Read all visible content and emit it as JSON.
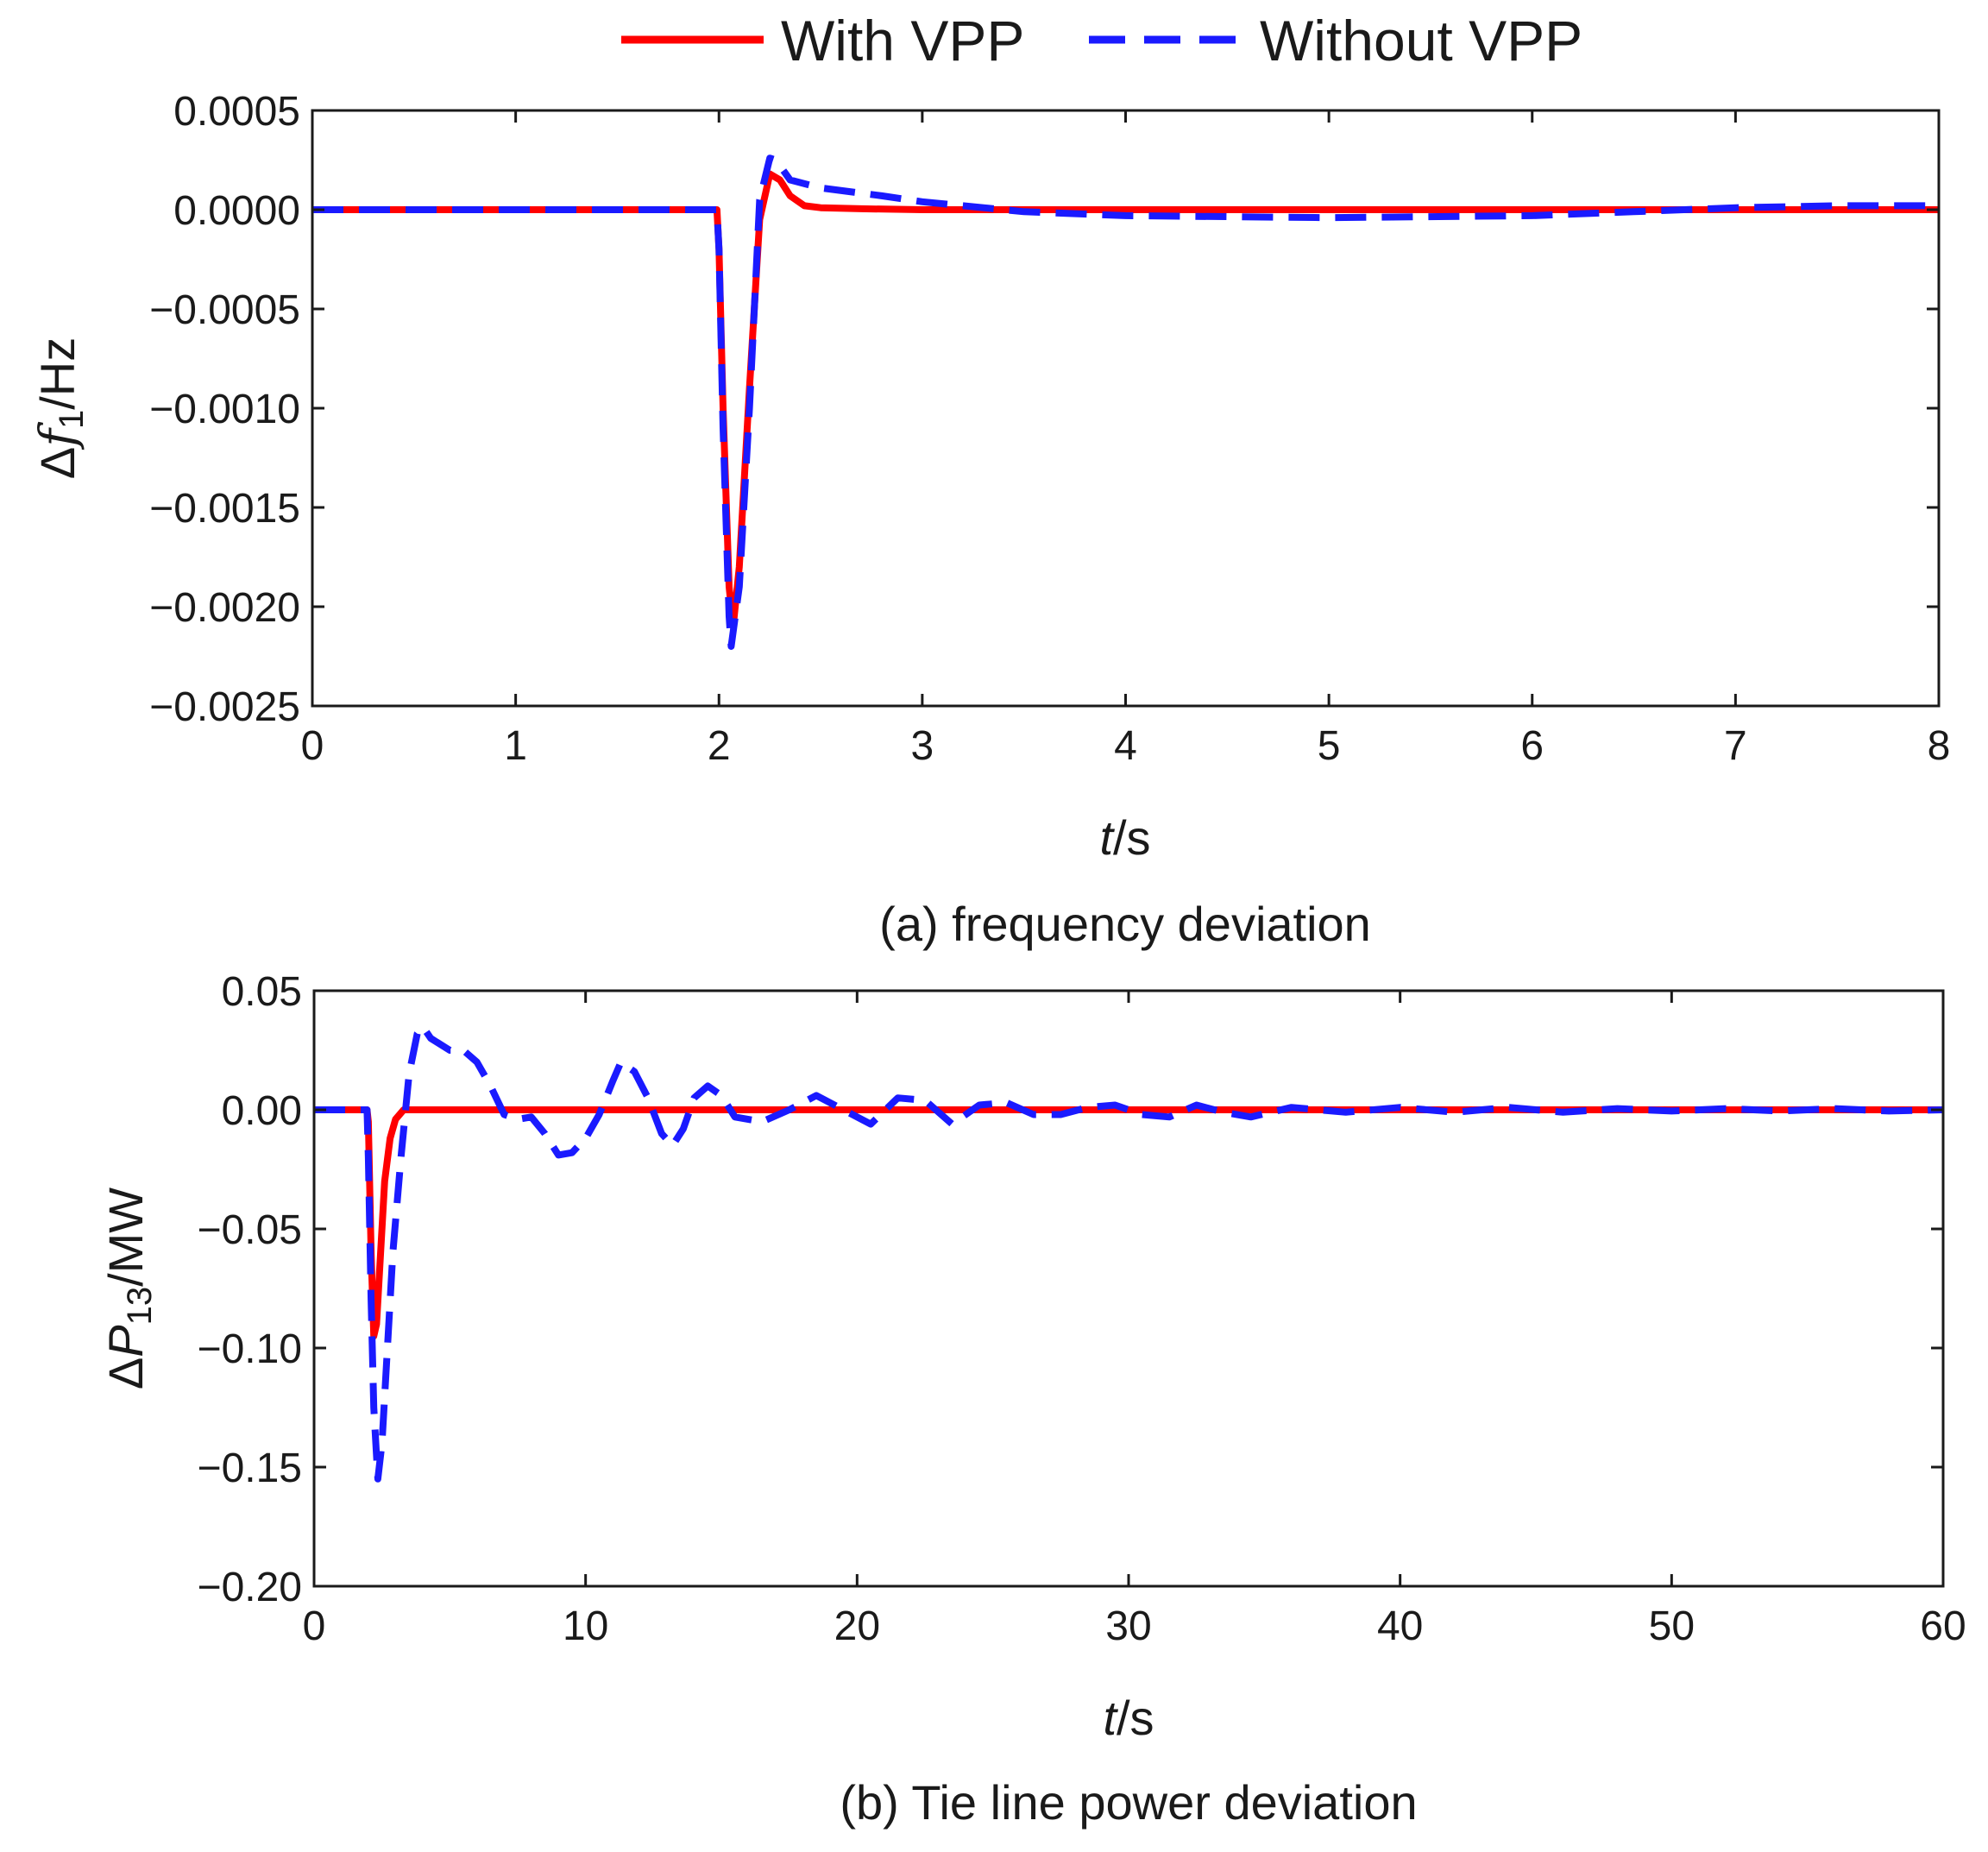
{
  "legend": {
    "with_label": "With VPP",
    "without_label": "Without VPP",
    "with_color": "#ff0000",
    "without_color": "#1a1aff"
  },
  "chart_data": [
    {
      "type": "line",
      "id": "a",
      "caption": "(a) frequency deviation",
      "xlabel_italic": "t",
      "xlabel_rest": "/s",
      "ylabel_prefix": "Δ",
      "ylabel_var": "f",
      "ylabel_sub": "1",
      "ylabel_unit": "/Hz",
      "xlim": [
        0,
        8
      ],
      "ylim": [
        -0.0025,
        0.0005
      ],
      "xticks": [
        0,
        1,
        2,
        3,
        4,
        5,
        6,
        7,
        8
      ],
      "xtick_labels": [
        "0",
        "1",
        "2",
        "3",
        "4",
        "5",
        "6",
        "7",
        "8"
      ],
      "yticks": [
        0.0005,
        0.0,
        -0.0005,
        -0.001,
        -0.0015,
        -0.002,
        -0.0025
      ],
      "ytick_labels": [
        "0.0005",
        "0.0000",
        "−0.0005",
        "−0.0010",
        "−0.0015",
        "−0.0020",
        "−0.0025"
      ],
      "series": [
        {
          "name": "With VPP",
          "x": [
            0,
            1.99,
            2.0,
            2.02,
            2.05,
            2.07,
            2.1,
            2.15,
            2.2,
            2.25,
            2.3,
            2.35,
            2.42,
            2.5,
            2.7,
            3.0,
            4.0,
            6.0,
            8.0
          ],
          "y": [
            0,
            0,
            -0.0002,
            -0.001,
            -0.0019,
            -0.0021,
            -0.0018,
            -0.0009,
            -5e-05,
            0.00018,
            0.00015,
            7e-05,
            2e-05,
            1e-05,
            5e-06,
            0,
            0,
            0,
            0
          ]
        },
        {
          "name": "Without VPP",
          "x": [
            0,
            1.99,
            2.0,
            2.02,
            2.05,
            2.06,
            2.1,
            2.15,
            2.2,
            2.25,
            2.28,
            2.35,
            2.5,
            2.8,
            3.0,
            3.5,
            4.0,
            5.0,
            6.0,
            6.5,
            7.0,
            7.5,
            8.0
          ],
          "y": [
            0,
            0,
            -0.0002,
            -0.0011,
            -0.00205,
            -0.0022,
            -0.0019,
            -0.001,
            5e-05,
            0.00026,
            0.00025,
            0.00015,
            0.00011,
            7e-05,
            4e-05,
            -1e-05,
            -3e-05,
            -4e-05,
            -3e-05,
            -1e-05,
            1e-05,
            2e-05,
            2e-05
          ]
        }
      ]
    },
    {
      "type": "line",
      "id": "b",
      "caption": "(b) Tie line power deviation",
      "xlabel_italic": "t",
      "xlabel_rest": "/s",
      "ylabel_prefix": "Δ",
      "ylabel_var": "P",
      "ylabel_sub": "13",
      "ylabel_unit": "/MW",
      "xlim": [
        0,
        60
      ],
      "ylim": [
        -0.2,
        0.05
      ],
      "xticks": [
        0,
        10,
        20,
        30,
        40,
        50,
        60
      ],
      "xtick_labels": [
        "0",
        "10",
        "20",
        "30",
        "40",
        "50",
        "60"
      ],
      "yticks": [
        0.05,
        0.0,
        -0.05,
        -0.1,
        -0.15,
        -0.2
      ],
      "ytick_labels": [
        "0.05",
        "0.00",
        "−0.05",
        "−0.10",
        "−0.15",
        "−0.20"
      ],
      "series": [
        {
          "name": "With VPP",
          "x": [
            0,
            1.95,
            2.0,
            2.1,
            2.2,
            2.3,
            2.45,
            2.6,
            2.8,
            3.0,
            3.3,
            60
          ],
          "y": [
            0,
            0,
            -0.005,
            -0.06,
            -0.095,
            -0.09,
            -0.06,
            -0.03,
            -0.012,
            -0.004,
            0,
            0
          ]
        },
        {
          "name": "Without VPP",
          "x": [
            0,
            1.95,
            2.0,
            2.1,
            2.2,
            2.35,
            2.5,
            2.7,
            2.9,
            3.2,
            3.5,
            3.8,
            4.0,
            4.3,
            5.0,
            5.5,
            6.0,
            6.5,
            7.0,
            7.5,
            8.0,
            8.5,
            9.0,
            9.5,
            10.0,
            10.5,
            11.0,
            11.3,
            11.8,
            12.3,
            12.8,
            13.2,
            13.6,
            14.0,
            14.5,
            15.0,
            15.5,
            16.5,
            17.5,
            18.5,
            19.5,
            20.5,
            21.5,
            22.5,
            23.5,
            24.5,
            25.5,
            26.5,
            27.5,
            28.5,
            29.5,
            30.5,
            31.5,
            32.5,
            33.5,
            34.5,
            36,
            38,
            40,
            42,
            44,
            46,
            48,
            50,
            52,
            54,
            56,
            58,
            60
          ],
          "y": [
            0,
            0,
            -0.02,
            -0.08,
            -0.125,
            -0.155,
            -0.14,
            -0.1,
            -0.06,
            -0.02,
            0.015,
            0.032,
            0.035,
            0.03,
            0.025,
            0.025,
            0.02,
            0.01,
            -0.002,
            -0.004,
            -0.003,
            -0.01,
            -0.019,
            -0.018,
            -0.012,
            -0.002,
            0.012,
            0.02,
            0.016,
            0.005,
            -0.01,
            -0.015,
            -0.008,
            0.005,
            0.01,
            0.006,
            -0.003,
            -0.005,
            0.0,
            0.006,
            0.0,
            -0.006,
            0.005,
            0.004,
            -0.006,
            0.002,
            0.003,
            -0.002,
            -0.002,
            0.001,
            0.002,
            -0.002,
            -0.003,
            0.002,
            -0.001,
            -0.003,
            0.001,
            -0.001,
            0.001,
            -0.001,
            0.001,
            -0.001,
            0.0005,
            -0.0005,
            0.0005,
            -0.0005,
            0.0005,
            -0.0005,
            0
          ]
        }
      ]
    }
  ]
}
